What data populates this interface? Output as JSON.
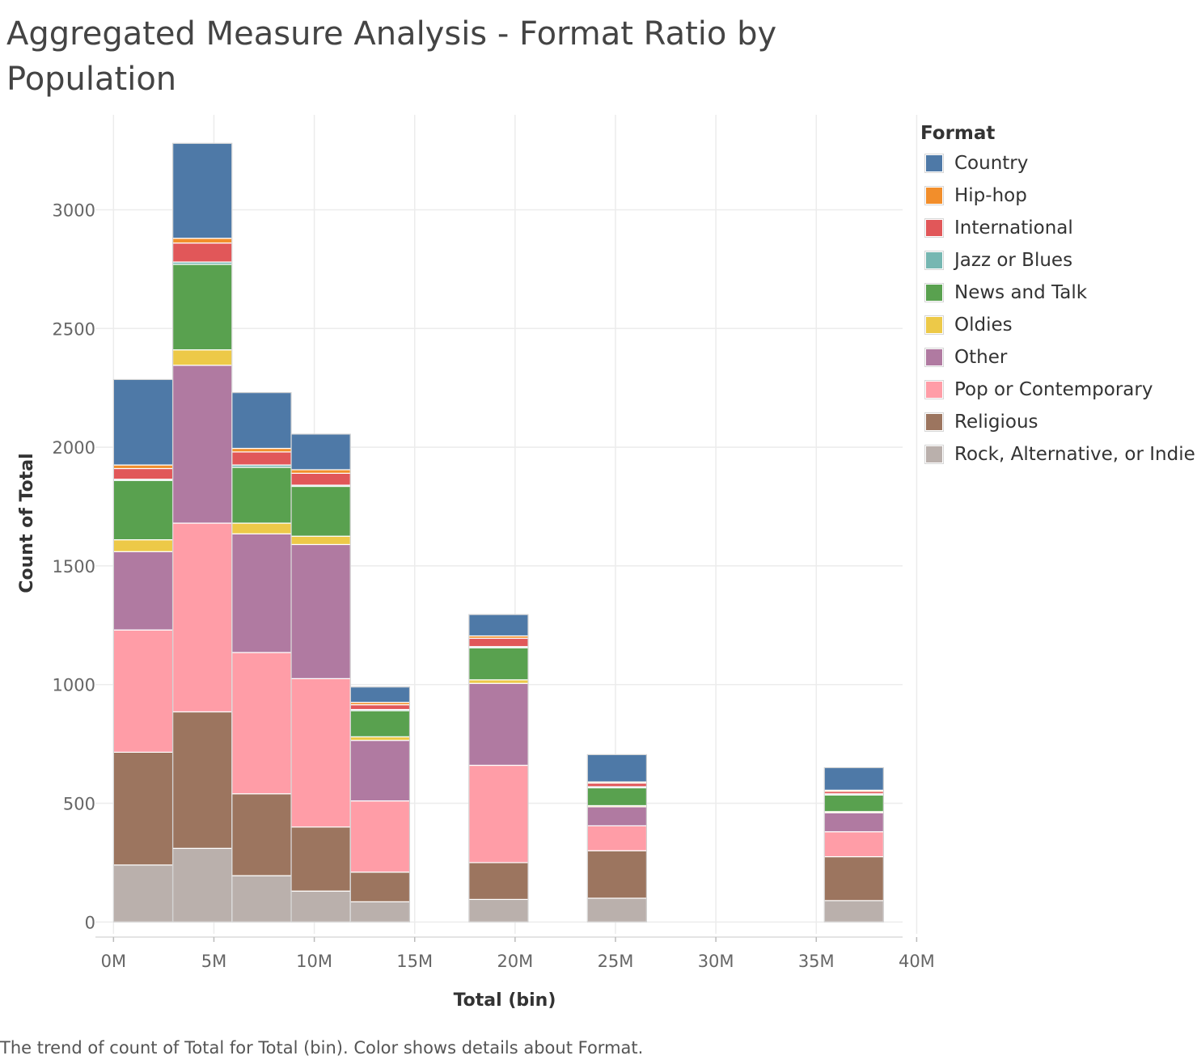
{
  "caption": "The trend of count of Total for Total (bin).  Color shows details about Format.",
  "legend": {
    "title": "Format",
    "items": [
      {
        "label": "Country",
        "color": "#4e79a7"
      },
      {
        "label": "Hip-hop",
        "color": "#f28e2b"
      },
      {
        "label": "International",
        "color": "#e15759"
      },
      {
        "label": "Jazz or Blues",
        "color": "#76b7b2"
      },
      {
        "label": "News and Talk",
        "color": "#59a14f"
      },
      {
        "label": "Oldies",
        "color": "#edc948"
      },
      {
        "label": "Other",
        "color": "#b07aa1"
      },
      {
        "label": "Pop or Contemporary",
        "color": "#ff9da7"
      },
      {
        "label": "Religious",
        "color": "#9c755f"
      },
      {
        "label": "Rock, Alternative, or Indie",
        "color": "#bab0ac"
      }
    ]
  },
  "chart_data": {
    "type": "bar",
    "stacked": true,
    "title": "Aggregated Measure Analysis - Format Ratio by Population",
    "xlabel": "Total (bin)",
    "ylabel": "Count of Total",
    "xlim": [
      -0.9,
      39.3
    ],
    "ylim": [
      -50,
      3400
    ],
    "x_ticks": [
      0,
      5,
      10,
      15,
      20,
      25,
      30,
      35,
      40
    ],
    "x_tick_labels": [
      "0M",
      "5M",
      "10M",
      "15M",
      "20M",
      "25M",
      "30M",
      "35M",
      "40M"
    ],
    "y_ticks": [
      0,
      500,
      1000,
      1500,
      2000,
      2500,
      3000
    ],
    "y_tick_labels": [
      "0",
      "500",
      "1000",
      "1500",
      "2000",
      "2500",
      "3000"
    ],
    "bin_width": 2.95,
    "bin_starts": [
      0,
      2.95,
      5.9,
      8.85,
      11.8,
      17.7,
      23.6,
      35.4
    ],
    "grid": true,
    "legend_position": "right",
    "series": [
      {
        "name": "Rock, Alternative, or Indie",
        "values": [
          240,
          310,
          195,
          130,
          85,
          95,
          100,
          90
        ]
      },
      {
        "name": "Religious",
        "values": [
          475,
          575,
          345,
          270,
          125,
          155,
          200,
          185
        ]
      },
      {
        "name": "Pop or Contemporary",
        "values": [
          515,
          795,
          595,
          625,
          300,
          410,
          105,
          105
        ]
      },
      {
        "name": "Other",
        "values": [
          330,
          665,
          500,
          565,
          255,
          345,
          80,
          80
        ]
      },
      {
        "name": "Oldies",
        "values": [
          50,
          65,
          45,
          35,
          15,
          15,
          5,
          5
        ]
      },
      {
        "name": "News and Talk",
        "values": [
          250,
          360,
          235,
          210,
          110,
          135,
          75,
          70
        ]
      },
      {
        "name": "Jazz or Blues",
        "values": [
          5,
          10,
          10,
          5,
          5,
          5,
          5,
          5
        ]
      },
      {
        "name": "International",
        "values": [
          45,
          80,
          55,
          50,
          20,
          35,
          15,
          10
        ]
      },
      {
        "name": "Hip-hop",
        "values": [
          15,
          20,
          15,
          15,
          10,
          10,
          5,
          5
        ]
      },
      {
        "name": "Country",
        "values": [
          360,
          400,
          235,
          150,
          65,
          90,
          115,
          95
        ]
      }
    ]
  }
}
